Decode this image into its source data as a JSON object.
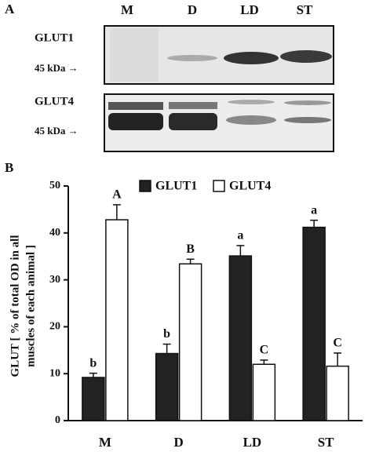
{
  "panel_a": {
    "label": "A",
    "lanes": [
      "M",
      "D",
      "LD",
      "ST"
    ],
    "blots": [
      {
        "name": "GLUT1",
        "marker": "45 kDa →"
      },
      {
        "name": "GLUT4",
        "marker": "45 kDa →"
      }
    ]
  },
  "chart_data": {
    "type": "bar",
    "panel_label": "B",
    "ylabel": [
      "GLUT [ % of total OD in all",
      "muscles  of  each  animal ]"
    ],
    "categories": [
      "M",
      "D",
      "LD",
      "ST"
    ],
    "series": [
      {
        "name": "GLUT1",
        "color": "#222222",
        "values": [
          9.2,
          14.3,
          35.1,
          41.2
        ],
        "errors": [
          0.9,
          2.0,
          2.2,
          1.5
        ],
        "letters": [
          "b",
          "b",
          "a",
          "a"
        ]
      },
      {
        "name": "GLUT4",
        "color": "#ffffff",
        "values": [
          42.8,
          33.4,
          12.0,
          11.6
        ],
        "errors": [
          3.2,
          1.0,
          0.9,
          2.8
        ],
        "letters": [
          "A",
          "B",
          "C",
          "C"
        ]
      }
    ],
    "ylim": [
      0,
      50
    ],
    "yticks": [
      0,
      10,
      20,
      30,
      40,
      50
    ],
    "legend": "top"
  }
}
